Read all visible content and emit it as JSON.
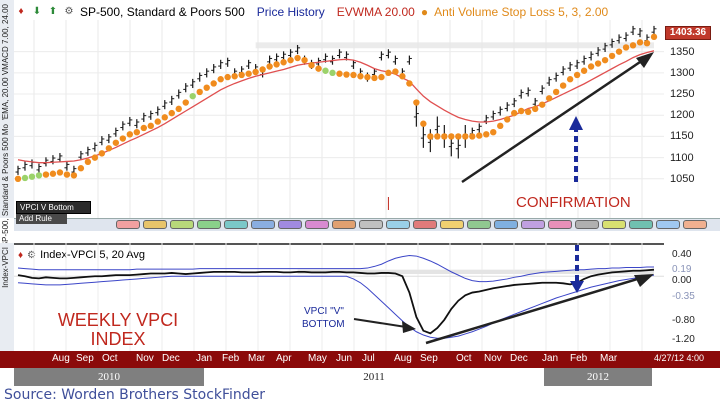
{
  "header": {
    "symbol": "SP-500, Standard & Poors 500",
    "study1": "Price History",
    "study2": "EVWMA 20.00",
    "study3": "Anti Volume Stop Loss 5, 3, 2.00",
    "last_price": "1403.36"
  },
  "side_labels": {
    "top": "VWEMA, 20.00  VMACD 7.00, 24.00",
    "middle": "RS vs SP-500, Standard & Poors 500  Mo",
    "lower": "Index-VPCI"
  },
  "toolbar": {
    "vpci_button": "VPCI V Bottom",
    "add_rule": "Add Rule"
  },
  "lower_header": "Index-VPCI 5, 20 Avg",
  "annotations": {
    "confirmation": "CONFIRMATION",
    "weekly_line1": "WEEKLY VPCI",
    "weekly_line2": "INDEX",
    "v_bottom_line1": "VPCI \"V\"",
    "v_bottom_line2": "BOTTOM"
  },
  "lower_axis_labels": [
    "0.40",
    "0.19",
    "0.00",
    "-0.35",
    "-0.80",
    "-1.20"
  ],
  "time_axis": {
    "months": [
      "Aug",
      "Sep",
      "Oct",
      "Nov",
      "Dec",
      "Jan",
      "Feb",
      "Mar",
      "Apr",
      "May",
      "Jun",
      "Jul",
      "Aug",
      "Sep",
      "Oct",
      "Nov",
      "Dec",
      "Jan",
      "Feb",
      "Mar"
    ],
    "stamp": "4/27/12 4:00",
    "years": [
      "2010",
      "2011",
      "2012"
    ]
  },
  "source": "Source: Worden Brothers StockFinder",
  "colors": {
    "dots": "#f08c1e",
    "dots_green": "#9bd26a",
    "evwma": "#e05050",
    "bars": "#1a1a1a",
    "vpci": "#111111",
    "bands": "#3c46c8",
    "confirmation": "#c0281e",
    "arrow_blue": "#1a2a9a",
    "axis_red": "#8b0a0a"
  },
  "chart_data": [
    {
      "type": "line",
      "title": "SP-500, Standard & Poors 500",
      "ylim": [
        1000,
        1420
      ],
      "yticks": [
        1050,
        1100,
        1150,
        1200,
        1250,
        1300,
        1350
      ],
      "series": [
        {
          "name": "Price History",
          "x": [
            0,
            1,
            2,
            3,
            4,
            5,
            6,
            7,
            8,
            9,
            10,
            11,
            12,
            13,
            14,
            15,
            16,
            17,
            18,
            19,
            20,
            21,
            22,
            23,
            24,
            25,
            26,
            27,
            28,
            29,
            30,
            31,
            32,
            33,
            34,
            35,
            36,
            37,
            38,
            39,
            40,
            41,
            42,
            43,
            44,
            45,
            46,
            47,
            48,
            49,
            50,
            51,
            52,
            53,
            54,
            55,
            56,
            57,
            58,
            59,
            60,
            61,
            62,
            63,
            64,
            65,
            66,
            67,
            68,
            69,
            70,
            71,
            72,
            73,
            74,
            75,
            76,
            77,
            78,
            79,
            80,
            81,
            82,
            83,
            84,
            85,
            86,
            87,
            88,
            89,
            90,
            91
          ],
          "values": [
            1070,
            1080,
            1085,
            1075,
            1090,
            1095,
            1100,
            1080,
            1070,
            1105,
            1115,
            1125,
            1140,
            1145,
            1160,
            1175,
            1185,
            1180,
            1195,
            1200,
            1210,
            1225,
            1235,
            1250,
            1265,
            1275,
            1290,
            1300,
            1310,
            1320,
            1325,
            1300,
            1305,
            1320,
            1310,
            1300,
            1330,
            1335,
            1340,
            1345,
            1355,
            1330,
            1320,
            1325,
            1335,
            1330,
            1345,
            1340,
            1320,
            1300,
            1290,
            1300,
            1340,
            1345,
            1330,
            1300,
            1330,
            1200,
            1150,
            1140,
            1170,
            1150,
            1130,
            1125,
            1150,
            1160,
            1170,
            1190,
            1200,
            1210,
            1220,
            1230,
            1250,
            1255,
            1230,
            1260,
            1280,
            1290,
            1305,
            1315,
            1320,
            1330,
            1340,
            1350,
            1360,
            1370,
            1380,
            1385,
            1400,
            1395,
            1380,
            1400
          ]
        },
        {
          "name": "EVWMA 20.00",
          "values": [
            1095,
            1092,
            1090,
            1088,
            1088,
            1089,
            1090,
            1091,
            1092,
            1095,
            1099,
            1104,
            1110,
            1117,
            1124,
            1132,
            1140,
            1147,
            1155,
            1163,
            1171,
            1180,
            1190,
            1200,
            1210,
            1220,
            1230,
            1240,
            1250,
            1260,
            1268,
            1275,
            1281,
            1287,
            1292,
            1296,
            1300,
            1304,
            1308,
            1313,
            1318,
            1321,
            1323,
            1325,
            1327,
            1329,
            1331,
            1332,
            1330,
            1325,
            1318,
            1310,
            1305,
            1302,
            1297,
            1288,
            1280,
            1262,
            1245,
            1232,
            1222,
            1212,
            1203,
            1195,
            1190,
            1186,
            1184,
            1184,
            1186,
            1190,
            1195,
            1200,
            1208,
            1216,
            1220,
            1227,
            1234,
            1242,
            1250,
            1258,
            1266,
            1274,
            1283,
            1292,
            1301,
            1310,
            1319,
            1327,
            1336,
            1343,
            1348,
            1352
          ]
        },
        {
          "name": "Anti Volume Stop Loss 5, 3, 2.00",
          "values": [
            1050,
            1052,
            1055,
            1058,
            1060,
            1062,
            1065,
            1060,
            1058,
            1075,
            1090,
            1100,
            1110,
            1122,
            1135,
            1145,
            1155,
            1160,
            1170,
            1175,
            1185,
            1195,
            1205,
            1215,
            1230,
            1245,
            1255,
            1265,
            1275,
            1285,
            1290,
            1292,
            1295,
            1298,
            1302,
            1308,
            1315,
            1320,
            1325,
            1330,
            1335,
            1330,
            1318,
            1310,
            1305,
            1300,
            1298,
            1296,
            1295,
            1292,
            1290,
            1288,
            1290,
            1300,
            1303,
            1292,
            1275,
            1230,
            1180,
            1150,
            1150,
            1150,
            1150,
            1150,
            1150,
            1150,
            1152,
            1155,
            1160,
            1175,
            1190,
            1205,
            1210,
            1208,
            1215,
            1225,
            1240,
            1255,
            1270,
            1285,
            1295,
            1305,
            1315,
            1322,
            1330,
            1340,
            1350,
            1360,
            1365,
            1372,
            1370,
            1385
          ]
        }
      ]
    },
    {
      "type": "line",
      "title": "Index-VPCI 5, 20 Avg",
      "ylim": [
        -1.3,
        0.5
      ],
      "series": [
        {
          "name": "Index-VPCI",
          "values": [
            0.02,
            0.0,
            -0.03,
            -0.04,
            -0.02,
            -0.03,
            -0.04,
            -0.04,
            -0.03,
            -0.02,
            -0.01,
            0.0,
            0.0,
            0.01,
            0.02,
            0.02,
            0.02,
            0.03,
            0.04,
            0.05,
            0.05,
            0.05,
            0.06,
            0.05,
            0.04,
            0.05,
            0.06,
            0.07,
            0.08,
            0.08,
            0.08,
            0.08,
            0.07,
            0.07,
            0.07,
            0.08,
            0.08,
            0.08,
            0.07,
            0.07,
            0.08,
            0.08,
            0.07,
            0.07,
            0.07,
            0.08,
            0.08,
            0.07,
            0.07,
            0.06,
            0.05,
            0.05,
            0.06,
            0.06,
            0.05,
            0.0,
            -0.3,
            -0.75,
            -1.0,
            -1.05,
            -0.95,
            -0.8,
            -0.6,
            -0.45,
            -0.35,
            -0.3,
            -0.28,
            -0.25,
            -0.22,
            -0.2,
            -0.18,
            -0.16,
            -0.15,
            -0.14,
            -0.13,
            -0.12,
            -0.12,
            -0.12,
            -0.13,
            -0.15,
            -0.12,
            -0.05,
            0.0,
            0.03,
            0.05,
            0.07,
            0.08,
            0.09,
            0.1,
            0.1,
            0.11,
            0.12
          ]
        },
        {
          "name": "Upper Band",
          "values": [
            0.15,
            0.14,
            0.13,
            0.12,
            0.12,
            0.12,
            0.12,
            0.12,
            0.12,
            0.12,
            0.12,
            0.12,
            0.12,
            0.12,
            0.12,
            0.12,
            0.12,
            0.13,
            0.13,
            0.13,
            0.13,
            0.13,
            0.13,
            0.13,
            0.13,
            0.13,
            0.14,
            0.14,
            0.14,
            0.14,
            0.14,
            0.14,
            0.14,
            0.14,
            0.14,
            0.14,
            0.14,
            0.14,
            0.14,
            0.14,
            0.14,
            0.14,
            0.14,
            0.14,
            0.14,
            0.14,
            0.14,
            0.14,
            0.14,
            0.14,
            0.15,
            0.18,
            0.22,
            0.28,
            0.33,
            0.36,
            0.38,
            0.37,
            0.33,
            0.28,
            0.22,
            0.15,
            0.08,
            0.02,
            -0.04,
            -0.08,
            -0.1,
            -0.1,
            -0.09,
            -0.07,
            -0.05,
            -0.02,
            0.0,
            0.03,
            0.05,
            0.07,
            0.08,
            0.09,
            0.1,
            0.11,
            0.12,
            0.12,
            0.13,
            0.14,
            0.14,
            0.15,
            0.15,
            0.16,
            0.16,
            0.16,
            0.17,
            0.17
          ]
        },
        {
          "name": "Lower Band",
          "values": [
            -0.12,
            -0.13,
            -0.14,
            -0.15,
            -0.16,
            -0.16,
            -0.16,
            -0.15,
            -0.14,
            -0.13,
            -0.12,
            -0.11,
            -0.1,
            -0.09,
            -0.08,
            -0.07,
            -0.06,
            -0.05,
            -0.04,
            -0.03,
            -0.02,
            -0.01,
            0.0,
            0.0,
            0.0,
            0.0,
            0.0,
            0.0,
            0.0,
            0.0,
            0.0,
            0.0,
            0.0,
            0.0,
            0.0,
            0.0,
            0.0,
            0.0,
            0.0,
            0.0,
            0.0,
            0.0,
            0.0,
            0.0,
            0.0,
            0.0,
            0.0,
            0.0,
            -0.05,
            -0.12,
            -0.22,
            -0.34,
            -0.46,
            -0.58,
            -0.7,
            -0.82,
            -0.93,
            -1.02,
            -1.08,
            -1.12,
            -1.14,
            -1.14,
            -1.12,
            -1.1,
            -1.06,
            -1.02,
            -0.97,
            -0.92,
            -0.86,
            -0.8,
            -0.75,
            -0.7,
            -0.65,
            -0.6,
            -0.55,
            -0.5,
            -0.45,
            -0.4,
            -0.36,
            -0.32,
            -0.28,
            -0.24,
            -0.2,
            -0.17,
            -0.14,
            -0.11,
            -0.08,
            -0.06,
            -0.04,
            -0.02,
            0.0,
            0.02
          ]
        }
      ]
    }
  ]
}
